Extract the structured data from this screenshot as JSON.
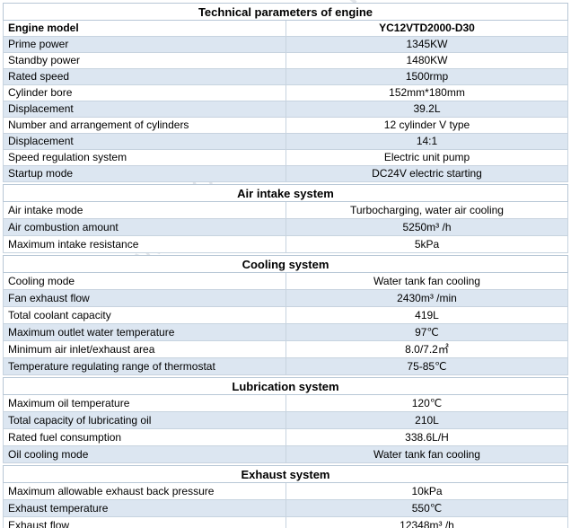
{
  "title": "Technical parameters of engine",
  "header": {
    "label": "Engine model",
    "value": "YC12VTD2000-D30"
  },
  "engine_rows": [
    {
      "label": "Prime power",
      "value": "1345KW"
    },
    {
      "label": "Standby power",
      "value": "1480KW"
    },
    {
      "label": "Rated speed",
      "value": "1500rmp"
    },
    {
      "label": "Cylinder bore",
      "value": "152mm*180mm"
    },
    {
      "label": "Displacement",
      "value": "39.2L"
    },
    {
      "label": "Number and arrangement of cylinders",
      "value": "12 cylinder V type"
    },
    {
      "label": "Displacement",
      "value": "14:1"
    },
    {
      "label": "Speed regulation system",
      "value": "Electric unit pump"
    },
    {
      "label": "Startup mode",
      "value": "DC24V electric starting"
    }
  ],
  "sections": [
    {
      "title": "Air intake system",
      "rows": [
        {
          "label": "Air intake mode",
          "value": "Turbocharging, water air cooling"
        },
        {
          "label": "Air combustion amount",
          "value": "5250m³ /h"
        },
        {
          "label": "Maximum intake resistance",
          "value": "5kPa"
        }
      ]
    },
    {
      "title": "Cooling system",
      "rows": [
        {
          "label": "Cooling mode",
          "value": "Water tank fan cooling"
        },
        {
          "label": "Fan exhaust flow",
          "value": "2430m³  /min"
        },
        {
          "label": "Total coolant capacity",
          "value": "419L"
        },
        {
          "label": "Maximum outlet water temperature",
          "value": "97℃"
        },
        {
          "label": "Minimum air inlet/exhaust area",
          "value": "8.0/7.2㎡"
        },
        {
          "label": "Temperature regulating range of thermostat",
          "value": "75-85℃"
        }
      ]
    },
    {
      "title": "Lubrication system",
      "rows": [
        {
          "label": "Maximum oil temperature",
          "value": "120℃"
        },
        {
          "label": "Total capacity of lubricating oil",
          "value": "210L"
        },
        {
          "label": "Rated fuel consumption",
          "value": "338.6L/H"
        },
        {
          "label": "Oil cooling mode",
          "value": "Water tank fan cooling"
        }
      ]
    },
    {
      "title": "Exhaust system",
      "rows": [
        {
          "label": "Maximum allowable exhaust back pressure",
          "value": "10kPa"
        },
        {
          "label": "Exhaust temperature",
          "value": "550℃"
        },
        {
          "label": "Exhaust flow",
          "value": "12348m³ /h"
        }
      ]
    }
  ],
  "watermark": "www.RonSun Power Technology Co.,"
}
